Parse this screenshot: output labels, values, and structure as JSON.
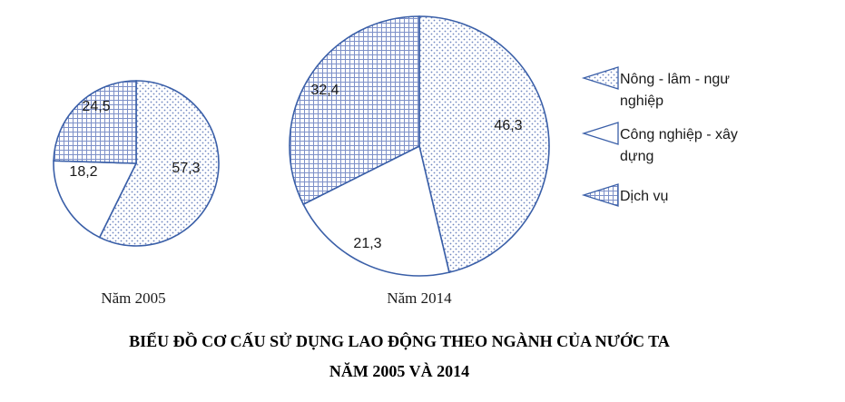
{
  "chart_data": {
    "type": "pie",
    "title_line1": "BIỂU ĐỒ CƠ CẤU SỬ DỤNG LAO ĐỘNG THEO NGÀNH CỦA NƯỚC TA",
    "title_line2": "NĂM 2005 VÀ 2014",
    "series": [
      {
        "name": "Nông - lâm - ngư nghiệp",
        "pattern": "dots"
      },
      {
        "name": "Công nghiệp - xây dựng",
        "pattern": "blank"
      },
      {
        "name": "Dịch vụ",
        "pattern": "grid"
      }
    ],
    "legend": {
      "placement": "right",
      "entries": [
        [
          "Nông  - lâm - ngư",
          "nghiệp"
        ],
        [
          "Công nghiệp - xây",
          "dựng"
        ],
        [
          "Dịch vụ"
        ]
      ]
    },
    "pies": [
      {
        "label": "Năm 2005",
        "values": [
          57.3,
          18.2,
          24.5
        ],
        "value_labels": [
          "57,3",
          "18,2",
          "24,5"
        ]
      },
      {
        "label": "Năm 2014",
        "values": [
          46.3,
          21.3,
          32.4
        ],
        "value_labels": [
          "46,3",
          "21,3",
          "32,4"
        ]
      }
    ],
    "colors": {
      "edge": "#3a5fa8",
      "dot": "#6f86c0",
      "grid": "#7d90c8",
      "text": "#1a1a1a"
    }
  }
}
